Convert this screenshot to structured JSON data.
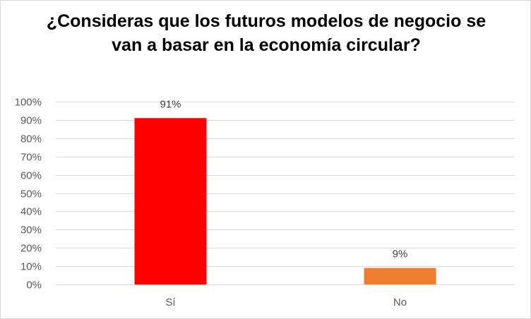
{
  "chart_data": {
    "type": "bar",
    "title": "¿Consideras que los futuros modelos de negocio se van a basar en la economía circular?",
    "categories": [
      "Sí",
      "No"
    ],
    "values": [
      91,
      9
    ],
    "data_labels": [
      "91%",
      "9%"
    ],
    "bar_colors": [
      "#ff0000",
      "#ed7d31"
    ],
    "ylim": [
      0,
      100
    ],
    "yticks": [
      "0%",
      "10%",
      "20%",
      "30%",
      "40%",
      "50%",
      "60%",
      "70%",
      "80%",
      "90%",
      "100%"
    ],
    "grid": true,
    "legend": "none",
    "xlabel": "",
    "ylabel": ""
  }
}
